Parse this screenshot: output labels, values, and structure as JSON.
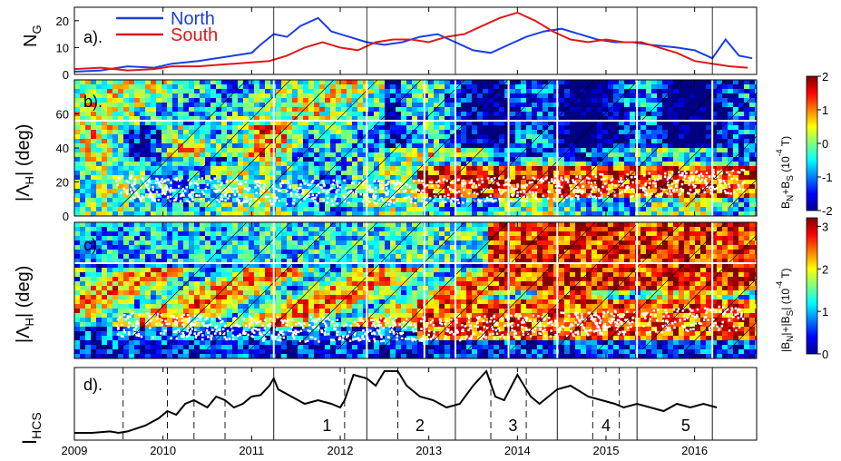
{
  "chart_data": [
    {
      "panel": "a",
      "type": "line",
      "label": "a).",
      "ylabel": "N",
      "ylabel_sub": "G",
      "ylim": [
        0,
        25
      ],
      "yticks": [
        "0",
        "10",
        "20"
      ],
      "legend_position": "top-left",
      "series": [
        {
          "name": "North",
          "color": "#1a3fe0",
          "x": [
            2009.0,
            2009.3,
            2009.6,
            2009.9,
            2010.1,
            2010.4,
            2010.6,
            2010.8,
            2011.0,
            2011.1,
            2011.25,
            2011.4,
            2011.55,
            2011.75,
            2011.9,
            2012.1,
            2012.3,
            2012.5,
            2012.7,
            2012.9,
            2013.1,
            2013.3,
            2013.5,
            2013.7,
            2013.9,
            2014.1,
            2014.3,
            2014.5,
            2014.7,
            2014.9,
            2015.1,
            2015.3,
            2015.5,
            2015.8,
            2016.0,
            2016.2,
            2016.35,
            2016.5,
            2016.65
          ],
          "values": [
            1,
            1.5,
            3,
            2.5,
            4,
            5,
            6,
            7,
            8,
            11,
            15,
            14,
            18,
            21,
            16,
            14,
            12,
            11,
            12,
            14,
            15,
            12,
            9,
            8,
            11,
            14,
            16,
            17,
            15,
            13,
            12,
            12,
            11,
            10,
            9,
            6,
            13,
            7,
            6
          ]
        },
        {
          "name": "South",
          "color": "#e01818",
          "x": [
            2009.0,
            2009.3,
            2009.6,
            2009.9,
            2010.1,
            2010.4,
            2010.6,
            2010.8,
            2011.0,
            2011.2,
            2011.4,
            2011.6,
            2011.8,
            2012.0,
            2012.2,
            2012.4,
            2012.6,
            2012.8,
            2013.0,
            2013.2,
            2013.4,
            2013.6,
            2013.8,
            2014.0,
            2014.2,
            2014.4,
            2014.6,
            2014.8,
            2015.0,
            2015.2,
            2015.4,
            2015.6,
            2015.8,
            2016.0,
            2016.2,
            2016.4,
            2016.6
          ],
          "values": [
            2,
            2.5,
            1.5,
            2,
            3,
            3,
            3.5,
            4,
            4.5,
            5,
            7,
            10,
            12,
            10,
            9,
            12,
            13,
            13,
            12,
            14,
            15,
            18,
            21,
            23,
            20,
            16,
            13,
            12,
            13,
            12,
            12,
            10,
            8,
            5,
            4,
            3,
            2.5
          ]
        }
      ]
    },
    {
      "panel": "b",
      "type": "heatmap",
      "label": "b).",
      "ylabel": "|Λ",
      "ylabel_sub": "H",
      "ylabel_end": "| (deg)",
      "ylim": [
        0,
        80
      ],
      "yticks": [
        "0",
        "20",
        "40",
        "60"
      ],
      "colorbar_label": "B",
      "colorbar_label_full": [
        "B",
        "N",
        "+B",
        "S",
        " (10",
        "-4",
        " T)"
      ],
      "colorbar_ticks": [
        "-2",
        "-1",
        "0",
        "1",
        "2"
      ],
      "clim": [
        -2,
        2
      ]
    },
    {
      "panel": "c",
      "type": "heatmap",
      "label": "c).",
      "ylabel": "|Λ",
      "ylabel_sub": "H",
      "ylabel_end": "| (deg)",
      "ylim": [
        0,
        80
      ],
      "colorbar_label_full": [
        "|B",
        "N",
        "|+|B",
        "S",
        "| (10",
        "-4",
        " T)"
      ],
      "colorbar_ticks": [
        "0",
        "1",
        "2",
        "3"
      ],
      "clim": [
        0,
        3.2
      ]
    },
    {
      "panel": "d",
      "type": "line",
      "label": "d).",
      "ylabel": "I",
      "ylabel_sub": "HCS",
      "xlabel": "",
      "xlim": [
        2009,
        2016.7
      ],
      "xticks": [
        "2009",
        "2010",
        "2011",
        "2012",
        "2013",
        "2014",
        "2015",
        "2016"
      ],
      "series": [
        {
          "name": "",
          "color": "#000000",
          "x": [
            2009.0,
            2009.2,
            2009.4,
            2009.5,
            2009.6,
            2009.8,
            2009.95,
            2010.05,
            2010.15,
            2010.25,
            2010.35,
            2010.5,
            2010.6,
            2010.7,
            2010.8,
            2010.9,
            2011.0,
            2011.1,
            2011.2,
            2011.25,
            2011.3,
            2011.45,
            2011.6,
            2011.75,
            2011.9,
            2012.0,
            2012.05,
            2012.15,
            2012.3,
            2012.4,
            2012.5,
            2012.65,
            2012.75,
            2012.9,
            2013.05,
            2013.2,
            2013.35,
            2013.5,
            2013.65,
            2013.75,
            2013.85,
            2014.0,
            2014.15,
            2014.25,
            2014.35,
            2014.45,
            2014.6,
            2014.8,
            2014.95,
            2015.1,
            2015.2,
            2015.35,
            2015.5,
            2015.65,
            2015.8,
            2015.95,
            2016.1,
            2016.25
          ],
          "values": [
            0.1,
            0.1,
            0.12,
            0.1,
            0.12,
            0.2,
            0.3,
            0.4,
            0.35,
            0.5,
            0.55,
            0.45,
            0.6,
            0.55,
            0.45,
            0.5,
            0.6,
            0.62,
            0.75,
            0.85,
            0.7,
            0.6,
            0.5,
            0.55,
            0.5,
            0.45,
            0.55,
            0.9,
            0.85,
            0.75,
            0.95,
            0.95,
            0.75,
            0.6,
            0.55,
            0.45,
            0.5,
            0.75,
            0.95,
            0.6,
            0.55,
            0.9,
            0.6,
            0.5,
            0.6,
            0.7,
            0.75,
            0.6,
            0.55,
            0.5,
            0.45,
            0.5,
            0.45,
            0.4,
            0.5,
            0.45,
            0.5,
            0.45
          ]
        }
      ],
      "region_labels": [
        "1",
        "2",
        "3",
        "4",
        "5"
      ],
      "region_label_x": [
        2011.85,
        2012.9,
        2013.95,
        2015.0,
        2015.9
      ]
    }
  ],
  "colors": {
    "north": "#1a3fe0",
    "south": "#e01818",
    "scatter": "#ffffff"
  },
  "solid_verticals_x": [
    2011.25,
    2012.3,
    2013.3,
    2014.45,
    2015.35,
    2016.2
  ],
  "dashed_verticals_x": [
    2009.55,
    2010.05,
    2010.35,
    2010.7,
    2012.05,
    2012.65,
    2013.7,
    2014.1,
    2014.85,
    2015.15
  ]
}
